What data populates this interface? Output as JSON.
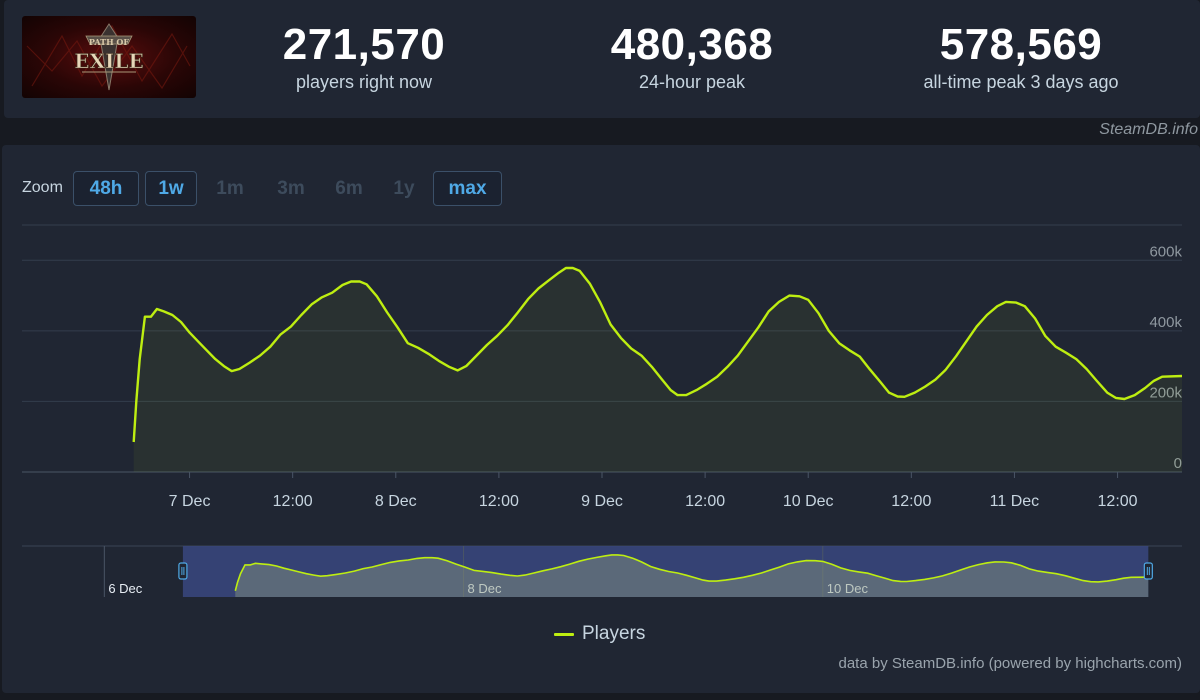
{
  "stats": [
    {
      "value": "271,570",
      "label": "players right now"
    },
    {
      "value": "480,368",
      "label": "24-hour peak"
    },
    {
      "value": "578,569",
      "label": "all-time peak 3 days ago"
    }
  ],
  "game_logo_text": "PATH OF EXILE",
  "credit_top": "SteamDB.info",
  "zoom": {
    "label": "Zoom",
    "buttons": [
      {
        "label": "48h",
        "state": "active"
      },
      {
        "label": "1w",
        "state": "active"
      },
      {
        "label": "1m",
        "state": "disabled"
      },
      {
        "label": "3m",
        "state": "disabled"
      },
      {
        "label": "6m",
        "state": "disabled"
      },
      {
        "label": "1y",
        "state": "disabled"
      },
      {
        "label": "max",
        "state": "active"
      }
    ]
  },
  "legend_label": "Players",
  "credit_bottom": "data by SteamDB.info (powered by highcharts.com)",
  "colors": {
    "line": "#beee11",
    "navigator_selection": "#3a4880",
    "background": "#202633"
  },
  "chart_data": {
    "type": "line",
    "title": "",
    "xlabel": "",
    "ylabel": "",
    "ylim": [
      0,
      700000
    ],
    "xlim_hours": [
      -19.5,
      115.5
    ],
    "x_unit": "hours since 7 Dec 00:00",
    "yticks": [
      {
        "value": 0,
        "label": "0"
      },
      {
        "value": 200000,
        "label": "200k"
      },
      {
        "value": 400000,
        "label": "400k"
      },
      {
        "value": 600000,
        "label": "600k"
      }
    ],
    "xticks": [
      {
        "value": 0,
        "label": "7 Dec"
      },
      {
        "value": 12,
        "label": "12:00"
      },
      {
        "value": 24,
        "label": "8 Dec"
      },
      {
        "value": 36,
        "label": "12:00"
      },
      {
        "value": 48,
        "label": "9 Dec"
      },
      {
        "value": 60,
        "label": "12:00"
      },
      {
        "value": 72,
        "label": "10 Dec"
      },
      {
        "value": 84,
        "label": "12:00"
      },
      {
        "value": 96,
        "label": "11 Dec"
      },
      {
        "value": 108,
        "label": "12:00"
      }
    ],
    "navigator_labels": [
      {
        "value": -24,
        "label": "6 Dec"
      },
      {
        "value": 24,
        "label": "8 Dec"
      },
      {
        "value": 72,
        "label": "10 Dec"
      }
    ],
    "navigator_range": [
      -35,
      120
    ],
    "navigator_selection": [
      -13.5,
      115.5
    ],
    "series": [
      {
        "name": "Players",
        "points": [
          [
            -6.5,
            85000
          ],
          [
            -6.2,
            200000
          ],
          [
            -5.8,
            320000
          ],
          [
            -5.2,
            440000
          ],
          [
            -4.5,
            440000
          ],
          [
            -3.8,
            462000
          ],
          [
            -3,
            455000
          ],
          [
            -2,
            445000
          ],
          [
            -1,
            425000
          ],
          [
            0,
            395000
          ],
          [
            1,
            370000
          ],
          [
            2,
            345000
          ],
          [
            3,
            320000
          ],
          [
            4,
            300000
          ],
          [
            4.9,
            286000
          ],
          [
            5.8,
            292000
          ],
          [
            7,
            310000
          ],
          [
            8.2,
            330000
          ],
          [
            9.4,
            355000
          ],
          [
            10.6,
            390000
          ],
          [
            11.8,
            412000
          ],
          [
            13,
            445000
          ],
          [
            14.2,
            475000
          ],
          [
            15.4,
            495000
          ],
          [
            16.6,
            508000
          ],
          [
            17.8,
            530000
          ],
          [
            18.8,
            540000
          ],
          [
            19.8,
            540000
          ],
          [
            20.6,
            532000
          ],
          [
            21.8,
            498000
          ],
          [
            23,
            452000
          ],
          [
            24.2,
            410000
          ],
          [
            25.4,
            365000
          ],
          [
            26.6,
            352000
          ],
          [
            27.8,
            335000
          ],
          [
            29,
            315000
          ],
          [
            30.2,
            298000
          ],
          [
            31.2,
            288000
          ],
          [
            32.2,
            300000
          ],
          [
            33.4,
            330000
          ],
          [
            34.6,
            360000
          ],
          [
            35.8,
            386000
          ],
          [
            37,
            416000
          ],
          [
            38.2,
            452000
          ],
          [
            39.4,
            490000
          ],
          [
            40.6,
            520000
          ],
          [
            41.8,
            543000
          ],
          [
            43,
            565000
          ],
          [
            43.8,
            578000
          ],
          [
            44.6,
            578000
          ],
          [
            45.4,
            570000
          ],
          [
            46.6,
            533000
          ],
          [
            47.8,
            480000
          ],
          [
            49,
            418000
          ],
          [
            50.2,
            380000
          ],
          [
            51.4,
            350000
          ],
          [
            52.6,
            330000
          ],
          [
            53.8,
            298000
          ],
          [
            55,
            262000
          ],
          [
            56,
            232000
          ],
          [
            56.8,
            218000
          ],
          [
            57.8,
            218000
          ],
          [
            59,
            232000
          ],
          [
            60.2,
            250000
          ],
          [
            61.4,
            270000
          ],
          [
            62.6,
            298000
          ],
          [
            63.8,
            330000
          ],
          [
            65,
            370000
          ],
          [
            66.2,
            410000
          ],
          [
            67.4,
            455000
          ],
          [
            68.6,
            482000
          ],
          [
            69.8,
            500000
          ],
          [
            71,
            498000
          ],
          [
            72,
            488000
          ],
          [
            73.2,
            450000
          ],
          [
            74.4,
            400000
          ],
          [
            75.6,
            365000
          ],
          [
            76.8,
            345000
          ],
          [
            78,
            327000
          ],
          [
            79.2,
            290000
          ],
          [
            80.4,
            255000
          ],
          [
            81.4,
            225000
          ],
          [
            82.4,
            214000
          ],
          [
            83.2,
            213000
          ],
          [
            84.4,
            225000
          ],
          [
            85.6,
            242000
          ],
          [
            86.8,
            262000
          ],
          [
            88,
            290000
          ],
          [
            89.2,
            328000
          ],
          [
            90.4,
            370000
          ],
          [
            91.6,
            412000
          ],
          [
            92.8,
            445000
          ],
          [
            94,
            470000
          ],
          [
            95,
            482000
          ],
          [
            96.2,
            480000
          ],
          [
            97.2,
            470000
          ],
          [
            98.4,
            435000
          ],
          [
            99.6,
            385000
          ],
          [
            100.8,
            355000
          ],
          [
            102,
            338000
          ],
          [
            103.2,
            320000
          ],
          [
            104.4,
            292000
          ],
          [
            105.6,
            258000
          ],
          [
            106.8,
            225000
          ],
          [
            107.8,
            210000
          ],
          [
            108.8,
            207000
          ],
          [
            110,
            218000
          ],
          [
            111.2,
            238000
          ],
          [
            112.2,
            258000
          ],
          [
            113.2,
            270000
          ],
          [
            115.5,
            272000
          ]
        ]
      }
    ]
  }
}
